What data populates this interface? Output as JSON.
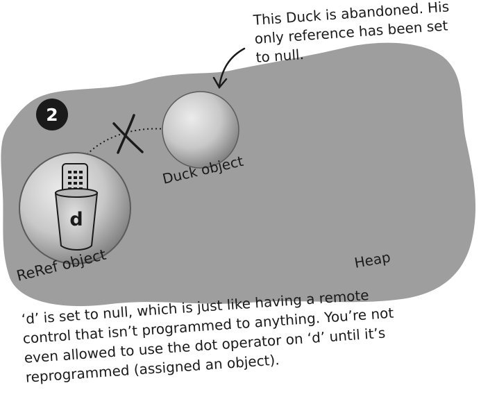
{
  "step_badge": "2",
  "top_note": {
    "lines": [
      "This Duck is abandoned. His",
      "only reference has been set",
      "to null."
    ]
  },
  "duck_label": "Duck object",
  "reref_label": "ReRef object",
  "heap_label": "Heap",
  "variable_label": "d",
  "bottom_note": {
    "lines": [
      "‘d’ is set to null, which is just like having a remote",
      "control that isn’t programmed to anything. You’re not",
      "even allowed to use the dot operator on ‘d’ until it’s",
      "reprogrammed (assigned an object)."
    ]
  },
  "colors": {
    "heap": "#9e9e9e",
    "badge": "#1a1a1a",
    "ink": "#1a1a1a",
    "sphere_light": "#e6e6e6",
    "sphere_dark": "#8a8a8a"
  },
  "icons": [
    "remote-control-icon",
    "cup-icon",
    "cross-out-icon",
    "arrow-icon"
  ]
}
